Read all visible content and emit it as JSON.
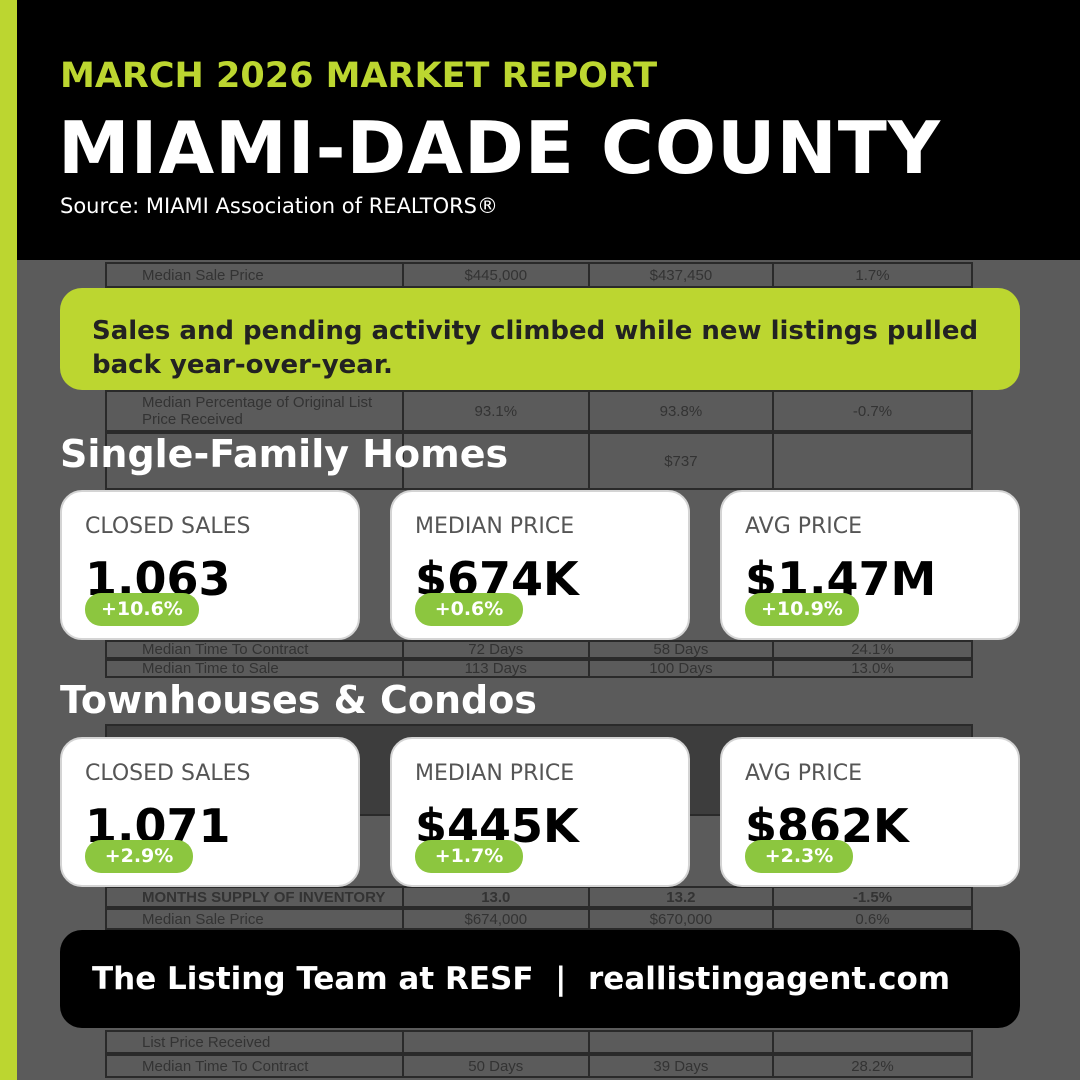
{
  "header": {
    "kicker": "MARCH 2026 MARKET REPORT",
    "title": "MIAMI-DADE COUNTY",
    "source": "Source: MIAMI Association of REALTORS®"
  },
  "banner": "Sales and pending activity climbed while new listings pulled back year-over-year.",
  "sections": [
    {
      "title": "Single-Family Homes",
      "cards": [
        {
          "label": "CLOSED SALES",
          "value": "1.063",
          "change": "+10.6%"
        },
        {
          "label": "MEDIAN PRICE",
          "value": "$674K",
          "change": "+0.6%"
        },
        {
          "label": "AVG PRICE",
          "value": "$1.47M",
          "change": "+10.9%"
        }
      ]
    },
    {
      "title": "Townhouses & Condos",
      "cards": [
        {
          "label": "CLOSED SALES",
          "value": "1.071",
          "change": "+2.9%"
        },
        {
          "label": "MEDIAN PRICE",
          "value": "$445K",
          "change": "+1.7%"
        },
        {
          "label": "AVG PRICE",
          "value": "$862K",
          "change": "+2.3%"
        }
      ]
    }
  ],
  "footer": "The Listing Team at RESF  |  reallistingagent.com",
  "background_table": [
    [
      "Median Sale Price",
      "$445,000",
      "$437,450",
      "1.7%"
    ],
    [
      "Median Percentage of Original List Price Received",
      "93.1%",
      "93.8%",
      "-0.7%"
    ],
    [
      "Median Time To Contract",
      "72 Days",
      "58 Days",
      "24.1%"
    ],
    [
      "Median Time to Sale",
      "113 Days",
      "100 Days",
      "13.0%"
    ],
    [
      "",
      "",
      "$737",
      ""
    ],
    [
      "MONTHS SUPPLY OF INVENTORY",
      "13.0",
      "13.2",
      "-1.5%"
    ],
    [
      "Median Sale Price",
      "$674,000",
      "$670,000",
      "0.6%"
    ],
    [
      "List Price Received",
      "",
      "",
      ""
    ],
    [
      "Median Time To Contract",
      "50 Days",
      "39 Days",
      "28.2%"
    ]
  ],
  "colors": {
    "accent": "#bcd630",
    "badge": "#8cc63f",
    "header": "#000000"
  }
}
